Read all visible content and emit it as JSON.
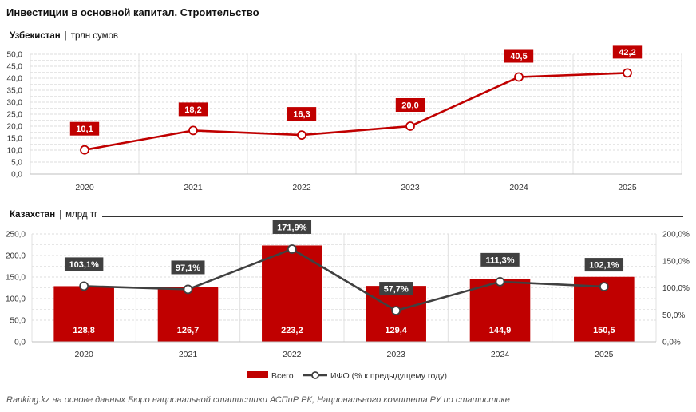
{
  "title": "Инвестиции в основной капитал. Строительство",
  "footer": "Ranking.kz на основе данных Бюро национальной статистики АСПиР РК, Национального комитета РУ по статистике",
  "colors": {
    "bar": "#c00000",
    "line_uz": "#c00000",
    "line_kz": "#404040",
    "label_dark": "#404040"
  },
  "chart_data": [
    {
      "type": "line",
      "section_title": "Узбекистан",
      "unit": "трлн сумов",
      "categories": [
        "2020",
        "2021",
        "2022",
        "2023",
        "2024",
        "2025"
      ],
      "series": [
        {
          "values": [
            10.1,
            18.2,
            16.3,
            20.0,
            40.5,
            42.2
          ],
          "labels": [
            "10,1",
            "18,2",
            "16,3",
            "20,0",
            "40,5",
            "42,2"
          ]
        }
      ],
      "ylim": [
        0,
        50
      ],
      "yticks": [
        "0,0",
        "5,0",
        "10,0",
        "15,0",
        "20,0",
        "25,0",
        "30,0",
        "35,0",
        "40,0",
        "45,0",
        "50,0"
      ],
      "grid": true
    },
    {
      "type": "bar",
      "section_title": "Казахстан",
      "unit": "млрд тг",
      "categories": [
        "2020",
        "2021",
        "2022",
        "2023",
        "2024",
        "2025"
      ],
      "series": [
        {
          "name": "Всего",
          "type": "bar",
          "axis": "left",
          "values": [
            128.8,
            126.7,
            223.2,
            129.4,
            144.9,
            150.5
          ],
          "labels": [
            "128,8",
            "126,7",
            "223,2",
            "129,4",
            "144,9",
            "150,5"
          ]
        },
        {
          "name": "ИФО (% к предыдущему году)",
          "type": "line",
          "axis": "right",
          "values": [
            103.1,
            97.1,
            171.9,
            57.7,
            111.3,
            102.1
          ],
          "labels": [
            "103,1%",
            "97,1%",
            "171,9%",
            "57,7%",
            "111,3%",
            "102,1%"
          ]
        }
      ],
      "ylim": [
        0,
        250
      ],
      "yticks": [
        "0,0",
        "50,0",
        "100,0",
        "150,0",
        "200,0",
        "250,0"
      ],
      "y2lim": [
        0,
        200
      ],
      "y2ticks": [
        "0,0%",
        "50,0%",
        "100,0%",
        "150,0%",
        "200,0%"
      ],
      "grid": true,
      "legend": "bottom"
    }
  ]
}
